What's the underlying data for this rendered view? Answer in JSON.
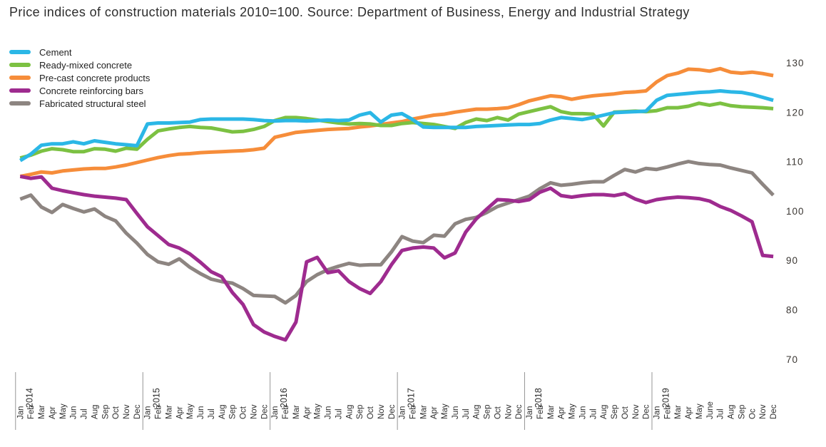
{
  "title": "Price indices of construction materials 2010=100. Source: Department of Business, Energy and Industrial Strategy",
  "chart_data": {
    "type": "line",
    "title": "Price indices of construction materials 2010=100. Source: Department of Business, Energy and Industrial Strategy",
    "xlabel": "",
    "ylabel": "",
    "grid": false,
    "legend_position": "top-left",
    "y_axis": {
      "side": "right",
      "range": [
        70,
        130
      ],
      "ticks": [
        130,
        120,
        110,
        100,
        90,
        80,
        70
      ]
    },
    "x_axis": {
      "years": [
        {
          "label": "2014",
          "months": [
            "Jan",
            "Feb",
            "Mar",
            "Apr",
            "May",
            "Jun",
            "Jul",
            "Aug",
            "Sep",
            "Oct",
            "Nov",
            "Dec"
          ]
        },
        {
          "label": "2015",
          "months": [
            "Jan",
            "Feb",
            "Mar",
            "Apr",
            "May",
            "Jun",
            "Jul",
            "Aug",
            "Sep",
            "Oct",
            "Nov",
            "Dec"
          ]
        },
        {
          "label": "2016",
          "months": [
            "Jan",
            "Feb",
            "Mar",
            "Apr",
            "May",
            "Jun",
            "Jul",
            "Aug",
            "Sep",
            "Oct",
            "Nov",
            "Dec"
          ]
        },
        {
          "label": "2017",
          "months": [
            "Jan",
            "Feb",
            "Mar",
            "Apr",
            "May",
            "Jun",
            "Jul",
            "Aug",
            "Sep",
            "Oct",
            "Nov",
            "Dec"
          ]
        },
        {
          "label": "2018",
          "months": [
            "Jan",
            "Feb",
            "Mar",
            "Apr",
            "May",
            "Jun",
            "Jul",
            "Aug",
            "Sep",
            "Oct",
            "Nov",
            "Dec"
          ]
        },
        {
          "label": "2019",
          "months": [
            "Jan",
            "Feb",
            "Mar",
            "Apr",
            "May",
            "June",
            "Jul",
            "Aug",
            "Sep",
            "Oc",
            "Nov",
            "Dec"
          ]
        }
      ]
    },
    "series": [
      {
        "key": "cement",
        "name": "Cement",
        "color": "#2bb7e6",
        "z": 5,
        "values": [
          110.2,
          111.5,
          113.3,
          113.6,
          113.6,
          114.0,
          113.6,
          114.2,
          113.9,
          113.6,
          113.4,
          113.2,
          117.6,
          117.8,
          117.8,
          117.9,
          118.0,
          118.5,
          118.6,
          118.6,
          118.6,
          118.6,
          118.5,
          118.3,
          118.2,
          118.3,
          118.3,
          118.2,
          118.3,
          118.4,
          118.3,
          118.4,
          119.4,
          119.9,
          118.0,
          119.4,
          119.7,
          118.5,
          117.0,
          116.9,
          116.9,
          116.9,
          116.9,
          117.1,
          117.2,
          117.3,
          117.4,
          117.5,
          117.5,
          117.7,
          118.4,
          118.9,
          118.7,
          118.5,
          118.9,
          119.4,
          119.9,
          120.0,
          120.1,
          120.2,
          122.4,
          123.4,
          123.6,
          123.8,
          124.0,
          124.1,
          124.3,
          124.1,
          124.0,
          123.6,
          123.0,
          122.4
        ]
      },
      {
        "key": "ready-mixed-concrete",
        "name": "Ready-mixed concrete",
        "color": "#7cc142",
        "z": 4,
        "values": [
          110.7,
          111.3,
          112.1,
          112.6,
          112.4,
          112.0,
          112.0,
          112.6,
          112.5,
          112.1,
          112.7,
          112.5,
          114.5,
          116.2,
          116.6,
          116.9,
          117.1,
          116.9,
          116.8,
          116.4,
          116.0,
          116.1,
          116.5,
          117.1,
          118.3,
          118.9,
          118.9,
          118.7,
          118.4,
          118.1,
          117.8,
          117.6,
          117.7,
          117.6,
          117.3,
          117.3,
          117.7,
          117.9,
          117.7,
          117.5,
          117.1,
          116.7,
          117.9,
          118.6,
          118.3,
          118.9,
          118.4,
          119.6,
          120.1,
          120.6,
          121.1,
          120.1,
          119.7,
          119.7,
          119.6,
          117.2,
          120.0,
          120.1,
          120.2,
          120.1,
          120.3,
          120.9,
          120.9,
          121.2,
          121.8,
          121.4,
          121.8,
          121.3,
          121.1,
          121.0,
          120.9,
          120.7
        ]
      },
      {
        "key": "pre-cast-concrete-products",
        "name": "Pre-cast concrete products",
        "color": "#f68d3a",
        "z": 1,
        "values": [
          107.0,
          107.4,
          107.9,
          107.7,
          108.1,
          108.3,
          108.5,
          108.6,
          108.6,
          108.9,
          109.3,
          109.8,
          110.3,
          110.8,
          111.2,
          111.5,
          111.6,
          111.8,
          111.9,
          112.0,
          112.1,
          112.2,
          112.4,
          112.7,
          114.9,
          115.4,
          115.9,
          116.1,
          116.3,
          116.5,
          116.6,
          116.7,
          117.0,
          117.2,
          117.5,
          117.8,
          118.1,
          118.6,
          119.0,
          119.4,
          119.6,
          120.0,
          120.3,
          120.6,
          120.6,
          120.7,
          120.9,
          121.5,
          122.3,
          122.8,
          123.3,
          123.1,
          122.6,
          123.0,
          123.3,
          123.5,
          123.7,
          124.0,
          124.1,
          124.3,
          126.1,
          127.4,
          127.9,
          128.7,
          128.6,
          128.3,
          128.8,
          128.1,
          127.9,
          128.1,
          127.8,
          127.4
        ]
      },
      {
        "key": "concrete-reinforcing-bars",
        "name": "Concrete reinforcing bars",
        "color": "#9e2b8f",
        "z": 3,
        "values": [
          107.0,
          106.6,
          106.9,
          104.6,
          104.1,
          103.7,
          103.3,
          103.0,
          102.8,
          102.6,
          102.3,
          99.5,
          96.8,
          95.0,
          93.2,
          92.5,
          91.3,
          89.6,
          87.7,
          86.7,
          83.5,
          81.1,
          77.0,
          75.5,
          74.6,
          73.9,
          77.5,
          89.7,
          90.6,
          87.5,
          87.9,
          85.7,
          84.3,
          83.3,
          85.7,
          89.1,
          92.0,
          92.5,
          92.7,
          92.5,
          90.5,
          91.5,
          95.7,
          98.4,
          100.4,
          102.3,
          102.2,
          101.9,
          102.3,
          103.8,
          104.6,
          103.1,
          102.8,
          103.1,
          103.3,
          103.3,
          103.1,
          103.5,
          102.4,
          101.7,
          102.3,
          102.6,
          102.8,
          102.7,
          102.5,
          102.0,
          100.9,
          100.1,
          99.0,
          97.8,
          91.0,
          90.8
        ]
      },
      {
        "key": "fabricated-structural-steel",
        "name": "Fabricated structural steel",
        "color": "#8d8581",
        "z": 2,
        "values": [
          102.4,
          103.2,
          100.8,
          99.7,
          101.3,
          100.5,
          99.8,
          100.4,
          98.9,
          98.0,
          95.5,
          93.5,
          91.2,
          89.7,
          89.2,
          90.3,
          88.6,
          87.3,
          86.2,
          85.7,
          85.4,
          84.3,
          82.9,
          82.8,
          82.7,
          81.4,
          82.9,
          85.7,
          87.1,
          88.1,
          88.8,
          89.4,
          89.0,
          89.1,
          89.1,
          91.7,
          94.8,
          93.9,
          93.6,
          95.1,
          94.9,
          97.4,
          98.3,
          98.7,
          99.7,
          100.9,
          101.6,
          102.3,
          103.0,
          104.5,
          105.7,
          105.2,
          105.4,
          105.7,
          105.9,
          105.9,
          107.2,
          108.4,
          107.9,
          108.6,
          108.4,
          108.9,
          109.5,
          110.0,
          109.6,
          109.4,
          109.3,
          108.7,
          108.2,
          107.7,
          105.4,
          103.2
        ]
      }
    ]
  }
}
